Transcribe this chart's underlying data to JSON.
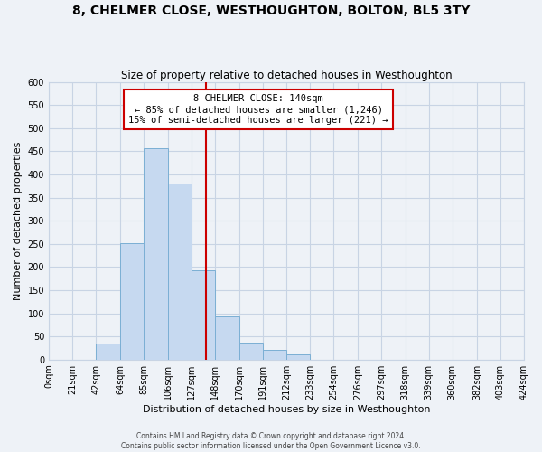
{
  "title": "8, CHELMER CLOSE, WESTHOUGHTON, BOLTON, BL5 3TY",
  "subtitle": "Size of property relative to detached houses in Westhoughton",
  "xlabel": "Distribution of detached houses by size in Westhoughton",
  "ylabel": "Number of detached properties",
  "bar_edges": [
    0,
    21,
    42,
    64,
    85,
    106,
    127,
    148,
    170,
    191,
    212,
    233,
    254,
    276,
    297,
    318,
    339,
    360,
    382,
    403,
    424
  ],
  "bar_heights": [
    0,
    0,
    35,
    252,
    457,
    381,
    193,
    93,
    36,
    21,
    12,
    0,
    0,
    0,
    0,
    0,
    0,
    0,
    0,
    0
  ],
  "bar_color": "#c6d9f0",
  "bar_edge_color": "#7bafd4",
  "vline_x": 140,
  "vline_color": "#cc0000",
  "ylim": [
    0,
    600
  ],
  "yticks": [
    0,
    50,
    100,
    150,
    200,
    250,
    300,
    350,
    400,
    450,
    500,
    550,
    600
  ],
  "annotation_title": "8 CHELMER CLOSE: 140sqm",
  "annotation_line1": "← 85% of detached houses are smaller (1,246)",
  "annotation_line2": "15% of semi-detached houses are larger (221) →",
  "annotation_box_color": "#ffffff",
  "annotation_box_edge": "#cc0000",
  "tick_labels": [
    "0sqm",
    "21sqm",
    "42sqm",
    "64sqm",
    "85sqm",
    "106sqm",
    "127sqm",
    "148sqm",
    "170sqm",
    "191sqm",
    "212sqm",
    "233sqm",
    "254sqm",
    "276sqm",
    "297sqm",
    "318sqm",
    "339sqm",
    "360sqm",
    "382sqm",
    "403sqm",
    "424sqm"
  ],
  "footer1": "Contains HM Land Registry data © Crown copyright and database right 2024.",
  "footer2": "Contains public sector information licensed under the Open Government Licence v3.0.",
  "bg_color": "#eef2f7",
  "plot_bg_color": "#eef2f7",
  "grid_color": "#c8d4e4"
}
